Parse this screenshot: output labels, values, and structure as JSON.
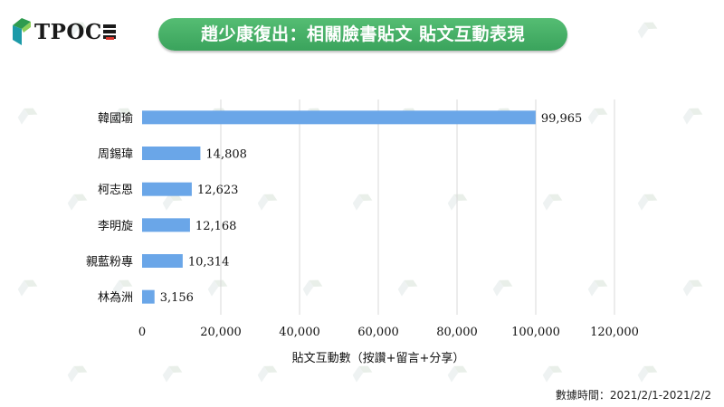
{
  "logo": {
    "text": "TPOC"
  },
  "chart_data": {
    "type": "bar",
    "orientation": "horizontal",
    "title": "趙少康復出：相關臉書貼文 貼文互動表現",
    "xlabel": "貼文互動數（按讚+留言+分享）",
    "ylabel": "",
    "categories": [
      "韓國瑜",
      "周錫瑋",
      "柯志恩",
      "李明旋",
      "親藍粉專",
      "林為洲"
    ],
    "values": [
      99965,
      14808,
      12623,
      12168,
      10314,
      3156
    ],
    "value_labels": [
      "99,965",
      "14,808",
      "12,623",
      "12,168",
      "10,314",
      "3,156"
    ],
    "xlim": [
      0,
      120000
    ],
    "xticks": [
      0,
      20000,
      40000,
      60000,
      80000,
      100000,
      120000
    ],
    "xtick_labels": [
      "0",
      "20,000",
      "40,000",
      "60,000",
      "80,000",
      "100,000",
      "120,000"
    ],
    "grid": "vertical",
    "legend": "none",
    "bar_color": "#6aa6e8",
    "grid_color": "#d9d9d9"
  },
  "footnote": "數據時間：2021/2/1-2021/2/2",
  "colors": {
    "title_bg": "#45ad66",
    "logo_green": "#2e9b4f",
    "logo_teal": "#1c9aa8"
  }
}
